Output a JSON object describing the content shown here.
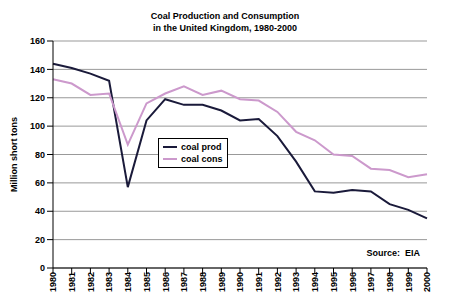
{
  "chart_data": {
    "type": "line",
    "title": "Coal Production and Consumption\nin the United Kingdom, 1980-2000",
    "y_label": "Million short tons",
    "annotation": "Source:  EIA",
    "categories": [
      "1980",
      "1981",
      "1982",
      "1983",
      "1984",
      "1985",
      "1986",
      "1987",
      "1988",
      "1989",
      "1990",
      "1991",
      "1992",
      "1993",
      "1994",
      "1995",
      "1996",
      "1997",
      "1998",
      "1999",
      "2000"
    ],
    "series": [
      {
        "name": "coal prod",
        "color": "#1a1a3a",
        "values": [
          144,
          141,
          137,
          132,
          57,
          104,
          119,
          115,
          115,
          111,
          104,
          105,
          93,
          75,
          54,
          53,
          55,
          54,
          45,
          41,
          35
        ]
      },
      {
        "name": "coal cons",
        "color": "#cc99cc",
        "values": [
          133,
          130,
          122,
          123,
          87,
          116,
          123,
          128,
          122,
          125,
          119,
          118,
          110,
          96,
          90,
          80,
          79,
          70,
          69,
          64,
          66
        ]
      }
    ],
    "ylim": [
      0,
      160
    ],
    "yticks": [
      0,
      20,
      40,
      60,
      80,
      100,
      120,
      140,
      160
    ],
    "grid": true,
    "legend": "center"
  }
}
